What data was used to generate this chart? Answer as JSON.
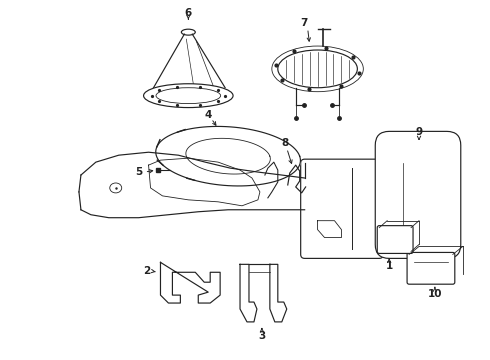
{
  "bg_color": "#ffffff",
  "line_color": "#222222",
  "figsize": [
    4.9,
    3.6
  ],
  "dpi": 100,
  "lw": 0.85
}
